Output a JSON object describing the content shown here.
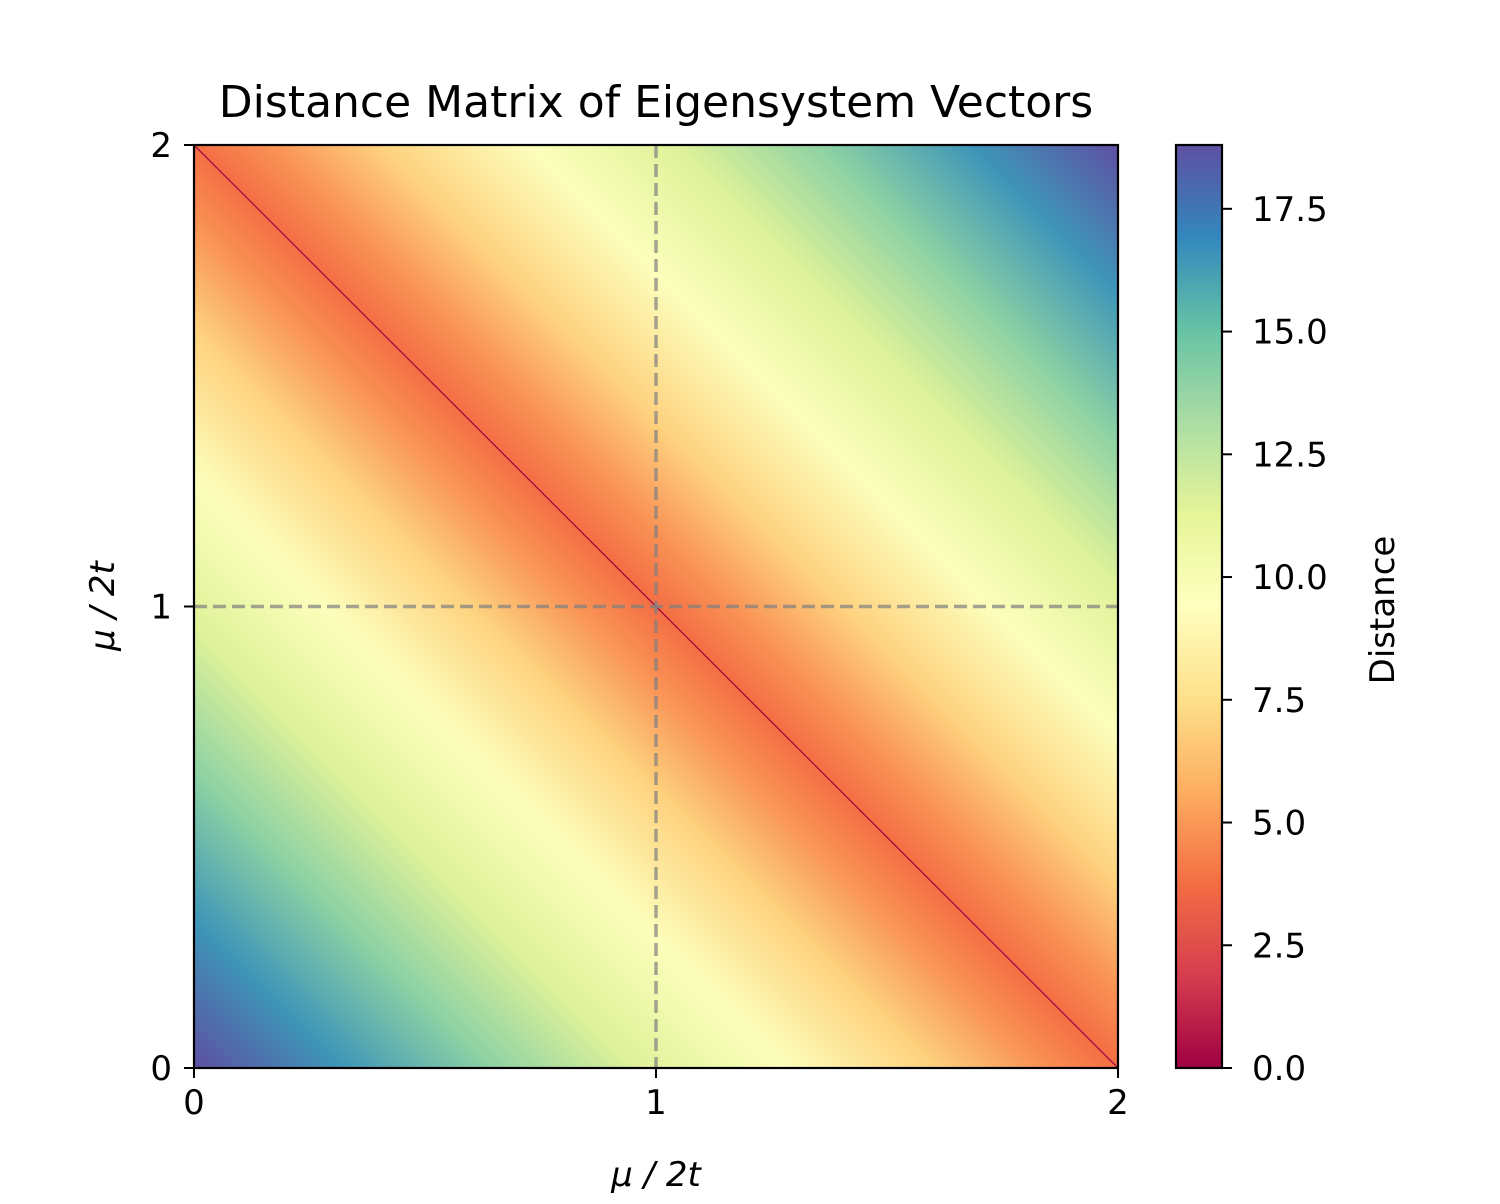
{
  "chart_data": {
    "type": "heatmap",
    "title": "Distance Matrix of Eigensystem Vectors",
    "xlabel": "μ / 2t",
    "ylabel": "μ / 2t",
    "xlim": [
      0,
      2
    ],
    "ylim": [
      0,
      2
    ],
    "x_ticks": [
      {
        "value": 0,
        "label": "0"
      },
      {
        "value": 1,
        "label": "1"
      },
      {
        "value": 2,
        "label": "2"
      }
    ],
    "y_ticks": [
      {
        "value": 0,
        "label": "0"
      },
      {
        "value": 1,
        "label": "1"
      },
      {
        "value": 2,
        "label": "2"
      }
    ],
    "reference_lines": [
      {
        "orientation": "vertical",
        "value": 1,
        "style": "dashed",
        "color": "#808080"
      },
      {
        "orientation": "horizontal",
        "value": 1,
        "style": "dashed",
        "color": "#808080"
      }
    ],
    "colorbar": {
      "label": "Distance",
      "range": [
        0,
        18.8
      ],
      "ticks": [
        {
          "value": 0.0,
          "label": "0.0"
        },
        {
          "value": 2.5,
          "label": "2.5"
        },
        {
          "value": 5.0,
          "label": "5.0"
        },
        {
          "value": 7.5,
          "label": "7.5"
        },
        {
          "value": 10.0,
          "label": "10.0"
        },
        {
          "value": 12.5,
          "label": "12.5"
        },
        {
          "value": 15.0,
          "label": "15.0"
        },
        {
          "value": 17.5,
          "label": "17.5"
        }
      ],
      "colormap": "Spectral",
      "colormap_stops": [
        "#9e0142",
        "#d53e4f",
        "#f46d43",
        "#fdae61",
        "#fee08b",
        "#ffffbf",
        "#e6f598",
        "#abdda4",
        "#66c2a5",
        "#3288bd",
        "#5e4fa2"
      ]
    },
    "matrix_description_values": {
      "diagonal": 0.0,
      "near_diagonal_band": 4.0,
      "corner_top_left_and_bottom_right": 0.0,
      "corner_bottom_left_and_top_right": 18.8
    },
    "grid": false
  }
}
